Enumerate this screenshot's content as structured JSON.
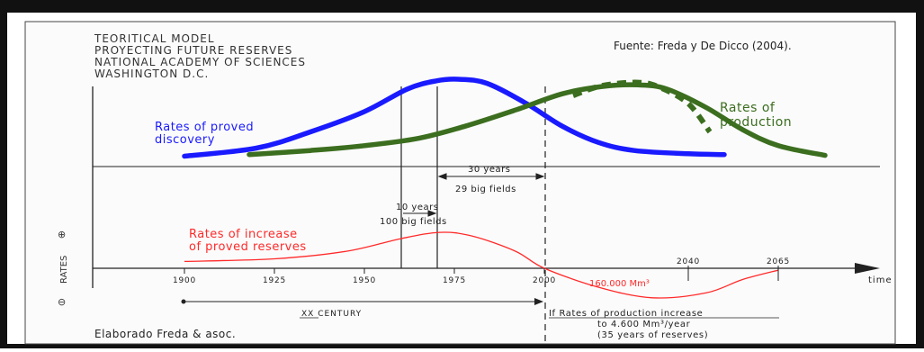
{
  "header": {
    "lines": [
      "TEORITICAL MODEL",
      "PROYECTING FUTURE RESERVES",
      "NATIONAL ACADEMY OF SCIENCES",
      "WASHINGTON D.C."
    ],
    "source": "Fuente: Freda y De Dicco (2004)."
  },
  "labels": {
    "discovery": [
      "Rates of proved",
      "discovery"
    ],
    "production": [
      "Rates of",
      "production"
    ],
    "increase": [
      "Rates of increase",
      "of proved reserves"
    ],
    "gap_30": "30 years",
    "fields_29": "29 big fields",
    "gap_10": "10 years",
    "fields_100": "100 big fields",
    "rates_axis": "RATES",
    "plus": "⊕",
    "minus": "⊖",
    "time": "time",
    "century": "XX  CENTURY",
    "volume": "160.000 Mm³",
    "scenario": [
      "If Rates of production increase",
      "to 4.600 Mm³/year",
      "(35 years of reserves)"
    ],
    "credit": "Elaborado Freda & asoc."
  },
  "colors": {
    "discovery": "#1a1aff",
    "production": "#3c6e1f",
    "increase": "#ff2a2a",
    "ink": "#333333",
    "frame": "#111111",
    "panel_bg": "#fbfbfb"
  },
  "chart_data": {
    "type": "line",
    "x_ticks": [
      1900,
      1925,
      1950,
      1975,
      2000
    ],
    "x_ticks_upper": [
      2040,
      2065
    ],
    "x_range": [
      1900,
      2075
    ],
    "series": [
      {
        "name": "Rates of proved discovery",
        "points": [
          [
            1900,
            0.05
          ],
          [
            1920,
            0.15
          ],
          [
            1935,
            0.35
          ],
          [
            1950,
            0.6
          ],
          [
            1962,
            0.88
          ],
          [
            1970,
            0.98
          ],
          [
            1976,
            1.0
          ],
          [
            1984,
            0.95
          ],
          [
            1995,
            0.7
          ],
          [
            2005,
            0.42
          ],
          [
            2015,
            0.22
          ],
          [
            2025,
            0.12
          ],
          [
            2040,
            0.08
          ],
          [
            2050,
            0.07
          ]
        ]
      },
      {
        "name": "Rates of production",
        "points": [
          [
            1918,
            0.07
          ],
          [
            1935,
            0.12
          ],
          [
            1950,
            0.18
          ],
          [
            1965,
            0.27
          ],
          [
            1978,
            0.42
          ],
          [
            1992,
            0.62
          ],
          [
            2005,
            0.82
          ],
          [
            2016,
            0.91
          ],
          [
            2026,
            0.93
          ],
          [
            2034,
            0.88
          ],
          [
            2045,
            0.65
          ],
          [
            2055,
            0.38
          ],
          [
            2065,
            0.18
          ],
          [
            2078,
            0.06
          ]
        ]
      },
      {
        "name": "projected production (dashed)",
        "points": [
          [
            2008,
            0.8
          ],
          [
            2016,
            0.92
          ],
          [
            2026,
            0.96
          ],
          [
            2032,
            0.9
          ],
          [
            2040,
            0.7
          ],
          [
            2046,
            0.35
          ]
        ]
      },
      {
        "name": "Rates of increase of proved reserves",
        "points": [
          [
            1900,
            0.18
          ],
          [
            1925,
            0.25
          ],
          [
            1945,
            0.45
          ],
          [
            1960,
            0.78
          ],
          [
            1971,
            0.95
          ],
          [
            1980,
            0.85
          ],
          [
            1992,
            0.45
          ],
          [
            2000,
            0.0
          ],
          [
            2015,
            -0.5
          ],
          [
            2030,
            -0.78
          ],
          [
            2045,
            -0.65
          ],
          [
            2055,
            -0.3
          ],
          [
            2065,
            -0.05
          ]
        ]
      }
    ]
  }
}
